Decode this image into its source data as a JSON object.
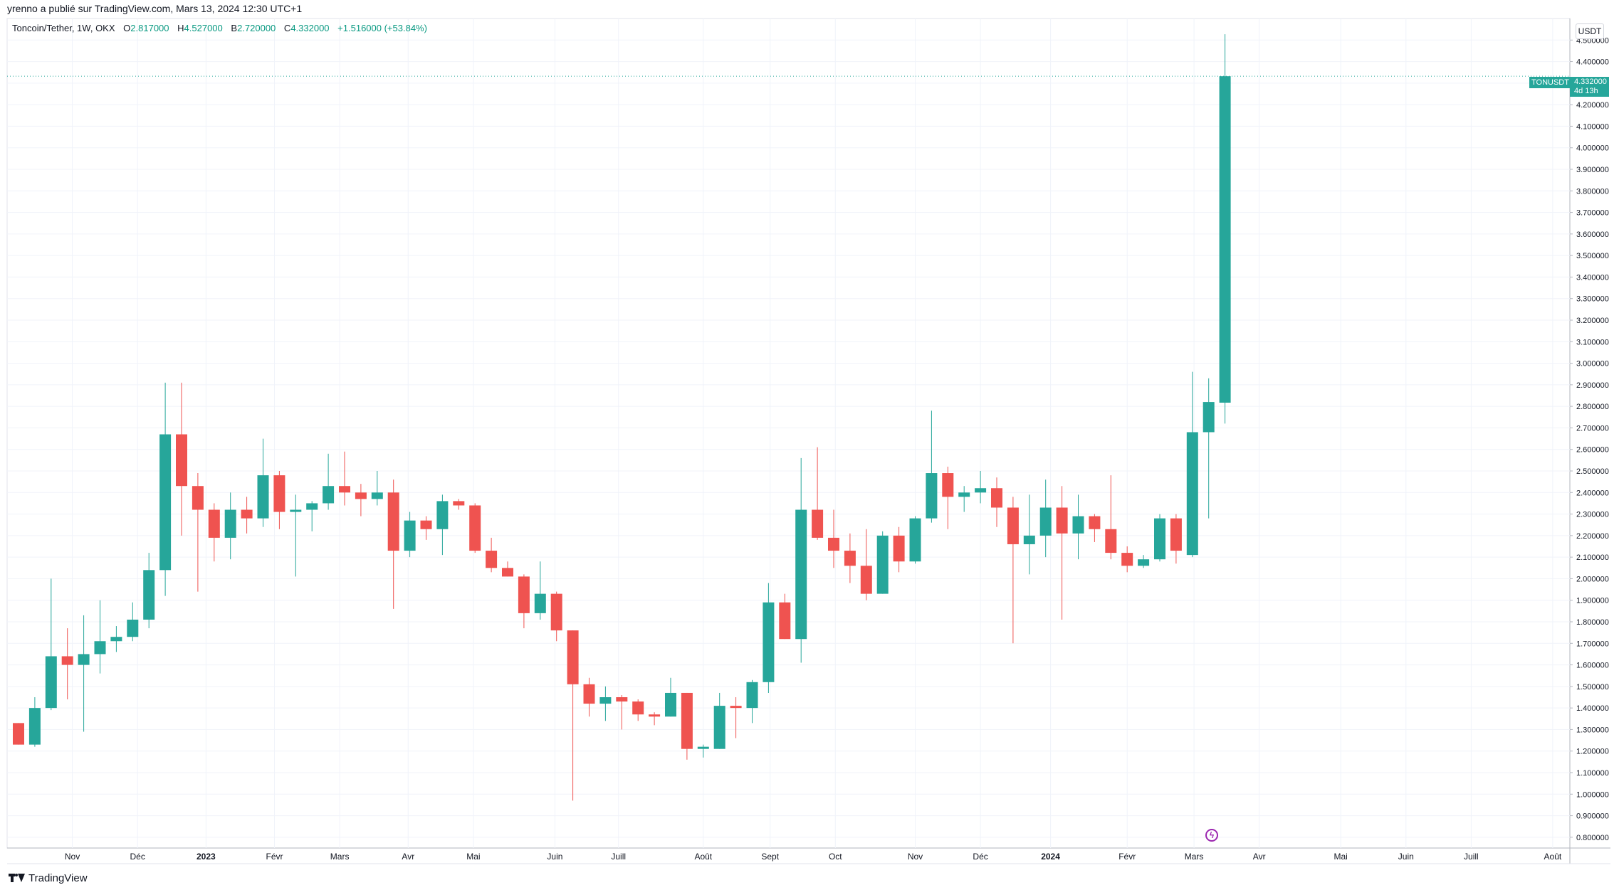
{
  "header": {
    "publisher_line": "yrenno a publié sur TradingView.com, Mars 13, 2024 12:30 UTC+1"
  },
  "legend": {
    "symbol": "Toncoin/Tether, 1W, OKX",
    "open_label": "O",
    "open_value": "2.817000",
    "high_label": "H",
    "high_value": "4.527000",
    "low_label": "B",
    "low_value": "2.720000",
    "close_label": "C",
    "close_value": "4.332000",
    "change_value": "+1.516000 (+53.84%)"
  },
  "price_scale": {
    "unit": "USDT",
    "last_symbol": "TONUSDT",
    "last_price": "4.332000",
    "countdown": "4d 13h"
  },
  "footer": {
    "brand": "TradingView"
  },
  "colors": {
    "up": "#26a69a",
    "down": "#ef5350",
    "grid": "#f0f3fa",
    "text": "#131722",
    "event_icon": "#9c27b0"
  },
  "icons": {
    "flash_event": "lightning-icon",
    "brand_logo": "tradingview-logo-icon"
  },
  "chart_data": {
    "type": "candlestick",
    "timeframe": "1W",
    "y_axis": {
      "range": [
        0.75,
        4.6
      ],
      "ticks": [
        "0.800000",
        "0.900000",
        "1.000000",
        "1.100000",
        "1.200000",
        "1.300000",
        "1.400000",
        "1.500000",
        "1.600000",
        "1.700000",
        "1.800000",
        "1.900000",
        "2.000000",
        "2.100000",
        "2.200000",
        "2.300000",
        "2.400000",
        "2.500000",
        "2.600000",
        "2.700000",
        "2.800000",
        "2.900000",
        "3.000000",
        "3.100000",
        "3.200000",
        "3.300000",
        "3.400000",
        "3.500000",
        "3.600000",
        "3.700000",
        "3.800000",
        "3.900000",
        "4.000000",
        "4.100000",
        "4.200000",
        "4.300000",
        "4.400000",
        "4.500000"
      ]
    },
    "x_axis": {
      "labels": [
        "Nov",
        "Déc",
        "2023",
        "Févr",
        "Mars",
        "Avr",
        "Mai",
        "Juin",
        "Juill",
        "Août",
        "Sept",
        "Oct",
        "Nov",
        "Déc",
        "2024",
        "Févr",
        "Mars",
        "Avr",
        "Mai",
        "Juin",
        "Juill",
        "Août"
      ],
      "label_week_index": [
        3.3,
        7.3,
        11.5,
        15.7,
        19.7,
        23.9,
        27.9,
        32.9,
        36.8,
        42.0,
        46.1,
        50.1,
        55.0,
        59.0,
        63.3,
        68.0,
        72.1,
        76.1,
        81.1,
        85.1,
        89.1,
        94.1
      ]
    },
    "grid": true,
    "candles": [
      {
        "o": 1.33,
        "h": 1.33,
        "l": 1.23,
        "c": 1.23
      },
      {
        "o": 1.23,
        "h": 1.45,
        "l": 1.22,
        "c": 1.4
      },
      {
        "o": 1.4,
        "h": 2.0,
        "l": 1.39,
        "c": 1.64
      },
      {
        "o": 1.64,
        "h": 1.77,
        "l": 1.44,
        "c": 1.6
      },
      {
        "o": 1.6,
        "h": 1.83,
        "l": 1.29,
        "c": 1.65
      },
      {
        "o": 1.65,
        "h": 1.9,
        "l": 1.56,
        "c": 1.71
      },
      {
        "o": 1.71,
        "h": 1.78,
        "l": 1.66,
        "c": 1.73
      },
      {
        "o": 1.73,
        "h": 1.89,
        "l": 1.71,
        "c": 1.81
      },
      {
        "o": 1.81,
        "h": 2.12,
        "l": 1.77,
        "c": 2.04
      },
      {
        "o": 2.04,
        "h": 2.91,
        "l": 1.92,
        "c": 2.67
      },
      {
        "o": 2.67,
        "h": 2.91,
        "l": 2.2,
        "c": 2.43
      },
      {
        "o": 2.43,
        "h": 2.49,
        "l": 1.94,
        "c": 2.32
      },
      {
        "o": 2.32,
        "h": 2.35,
        "l": 2.08,
        "c": 2.19
      },
      {
        "o": 2.19,
        "h": 2.4,
        "l": 2.09,
        "c": 2.32
      },
      {
        "o": 2.32,
        "h": 2.38,
        "l": 2.21,
        "c": 2.28
      },
      {
        "o": 2.28,
        "h": 2.65,
        "l": 2.24,
        "c": 2.48
      },
      {
        "o": 2.48,
        "h": 2.5,
        "l": 2.23,
        "c": 2.31
      },
      {
        "o": 2.31,
        "h": 2.39,
        "l": 2.01,
        "c": 2.32
      },
      {
        "o": 2.32,
        "h": 2.36,
        "l": 2.22,
        "c": 2.35
      },
      {
        "o": 2.35,
        "h": 2.58,
        "l": 2.32,
        "c": 2.43
      },
      {
        "o": 2.43,
        "h": 2.59,
        "l": 2.34,
        "c": 2.4
      },
      {
        "o": 2.4,
        "h": 2.44,
        "l": 2.29,
        "c": 2.37
      },
      {
        "o": 2.37,
        "h": 2.5,
        "l": 2.34,
        "c": 2.4
      },
      {
        "o": 2.4,
        "h": 2.46,
        "l": 1.86,
        "c": 2.13
      },
      {
        "o": 2.13,
        "h": 2.31,
        "l": 2.1,
        "c": 2.27
      },
      {
        "o": 2.27,
        "h": 2.29,
        "l": 2.18,
        "c": 2.23
      },
      {
        "o": 2.23,
        "h": 2.39,
        "l": 2.11,
        "c": 2.36
      },
      {
        "o": 2.36,
        "h": 2.37,
        "l": 2.32,
        "c": 2.34
      },
      {
        "o": 2.34,
        "h": 2.35,
        "l": 2.12,
        "c": 2.13
      },
      {
        "o": 2.13,
        "h": 2.19,
        "l": 2.03,
        "c": 2.05
      },
      {
        "o": 2.05,
        "h": 2.08,
        "l": 2.01,
        "c": 2.01
      },
      {
        "o": 2.01,
        "h": 2.02,
        "l": 1.77,
        "c": 1.84
      },
      {
        "o": 1.84,
        "h": 2.08,
        "l": 1.81,
        "c": 1.93
      },
      {
        "o": 1.93,
        "h": 1.94,
        "l": 1.71,
        "c": 1.76
      },
      {
        "o": 1.76,
        "h": 1.76,
        "l": 0.97,
        "c": 1.51
      },
      {
        "o": 1.51,
        "h": 1.54,
        "l": 1.36,
        "c": 1.42
      },
      {
        "o": 1.42,
        "h": 1.5,
        "l": 1.34,
        "c": 1.45
      },
      {
        "o": 1.45,
        "h": 1.46,
        "l": 1.3,
        "c": 1.43
      },
      {
        "o": 1.43,
        "h": 1.44,
        "l": 1.34,
        "c": 1.37
      },
      {
        "o": 1.37,
        "h": 1.38,
        "l": 1.32,
        "c": 1.36
      },
      {
        "o": 1.36,
        "h": 1.54,
        "l": 1.36,
        "c": 1.47
      },
      {
        "o": 1.47,
        "h": 1.47,
        "l": 1.16,
        "c": 1.21
      },
      {
        "o": 1.21,
        "h": 1.23,
        "l": 1.17,
        "c": 1.22
      },
      {
        "o": 1.21,
        "h": 1.47,
        "l": 1.21,
        "c": 1.41
      },
      {
        "o": 1.41,
        "h": 1.45,
        "l": 1.26,
        "c": 1.4
      },
      {
        "o": 1.4,
        "h": 1.53,
        "l": 1.33,
        "c": 1.52
      },
      {
        "o": 1.52,
        "h": 1.98,
        "l": 1.47,
        "c": 1.89
      },
      {
        "o": 1.89,
        "h": 1.93,
        "l": 1.72,
        "c": 1.72
      },
      {
        "o": 1.72,
        "h": 2.56,
        "l": 1.61,
        "c": 2.32
      },
      {
        "o": 2.32,
        "h": 2.61,
        "l": 2.18,
        "c": 2.19
      },
      {
        "o": 2.19,
        "h": 2.32,
        "l": 2.05,
        "c": 2.13
      },
      {
        "o": 2.13,
        "h": 2.21,
        "l": 1.98,
        "c": 2.06
      },
      {
        "o": 2.06,
        "h": 2.23,
        "l": 1.9,
        "c": 1.93
      },
      {
        "o": 1.93,
        "h": 2.22,
        "l": 1.93,
        "c": 2.2
      },
      {
        "o": 2.2,
        "h": 2.24,
        "l": 2.03,
        "c": 2.08
      },
      {
        "o": 2.08,
        "h": 2.29,
        "l": 2.07,
        "c": 2.28
      },
      {
        "o": 2.28,
        "h": 2.78,
        "l": 2.26,
        "c": 2.49
      },
      {
        "o": 2.49,
        "h": 2.52,
        "l": 2.23,
        "c": 2.38
      },
      {
        "o": 2.38,
        "h": 2.43,
        "l": 2.31,
        "c": 2.4
      },
      {
        "o": 2.4,
        "h": 2.5,
        "l": 2.35,
        "c": 2.42
      },
      {
        "o": 2.42,
        "h": 2.47,
        "l": 2.24,
        "c": 2.33
      },
      {
        "o": 2.33,
        "h": 2.38,
        "l": 1.7,
        "c": 2.16
      },
      {
        "o": 2.16,
        "h": 2.39,
        "l": 2.02,
        "c": 2.2
      },
      {
        "o": 2.2,
        "h": 2.46,
        "l": 2.1,
        "c": 2.33
      },
      {
        "o": 2.33,
        "h": 2.43,
        "l": 1.81,
        "c": 2.21
      },
      {
        "o": 2.21,
        "h": 2.39,
        "l": 2.09,
        "c": 2.29
      },
      {
        "o": 2.29,
        "h": 2.3,
        "l": 2.17,
        "c": 2.23
      },
      {
        "o": 2.23,
        "h": 2.48,
        "l": 2.09,
        "c": 2.12
      },
      {
        "o": 2.12,
        "h": 2.15,
        "l": 2.03,
        "c": 2.06
      },
      {
        "o": 2.06,
        "h": 2.11,
        "l": 2.05,
        "c": 2.09
      },
      {
        "o": 2.09,
        "h": 2.3,
        "l": 2.08,
        "c": 2.28
      },
      {
        "o": 2.28,
        "h": 2.3,
        "l": 2.07,
        "c": 2.13
      },
      {
        "o": 2.11,
        "h": 2.96,
        "l": 2.1,
        "c": 2.68
      },
      {
        "o": 2.68,
        "h": 2.93,
        "l": 2.28,
        "c": 2.82
      },
      {
        "o": 2.817,
        "h": 4.527,
        "l": 2.72,
        "c": 4.332
      }
    ],
    "last_price": 4.332
  }
}
